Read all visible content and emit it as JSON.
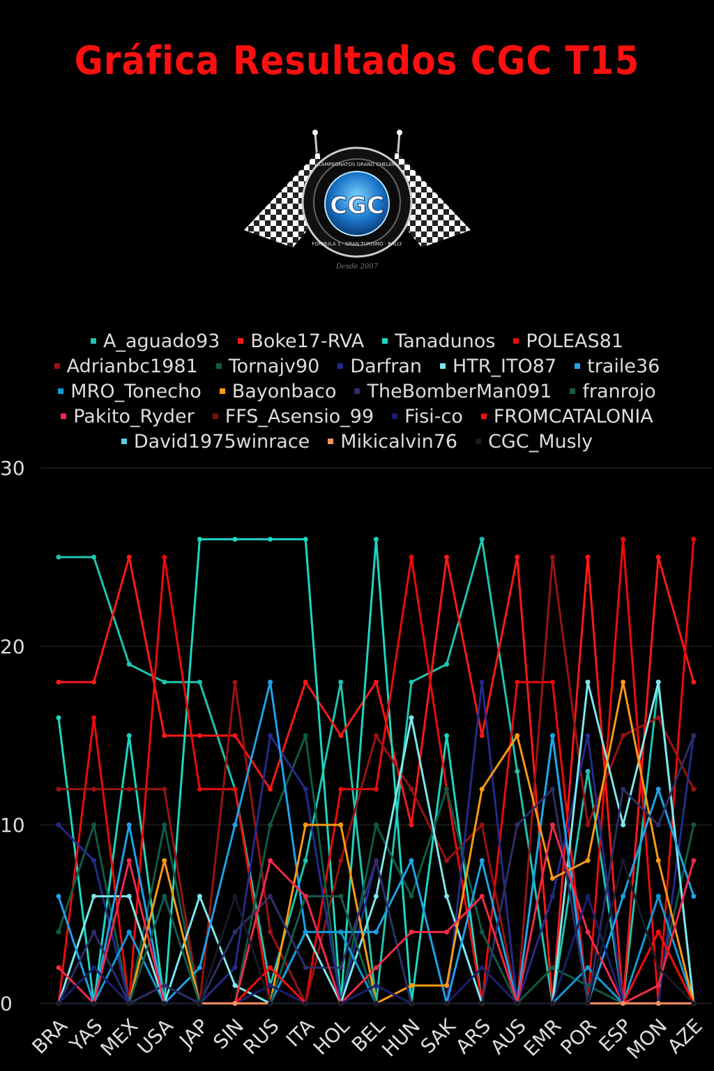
{
  "title": "Gráfica Resultados CGC T15",
  "logo": {
    "text": "CGC",
    "ring_top": "CAMPEONATOS GRAND CHELEM",
    "ring_bottom": "FORMULA 1 · GRAN TURISMO · RALLY",
    "tagline": "Desde 2007"
  },
  "chart_data": {
    "type": "line",
    "title": "Gráfica Resultados CGC T15",
    "xlabel": "",
    "ylabel": "",
    "ylim": [
      0,
      30
    ],
    "yticks": [
      0,
      10,
      20,
      30
    ],
    "grid": true,
    "legend_position": "top",
    "categories": [
      "BRA",
      "YAS",
      "MEX",
      "USA",
      "JAP",
      "SIN",
      "RUS",
      "ITA",
      "HOL",
      "BEL",
      "HUN",
      "SAK",
      "ARS",
      "AUS",
      "EMR",
      "POR",
      "ESP",
      "MON",
      "AZE"
    ],
    "series": [
      {
        "name": "A_aguado93",
        "color": "#20c4b0",
        "values": [
          25,
          25,
          19,
          18,
          18,
          12,
          1,
          8,
          18,
          0,
          18,
          19,
          26,
          13,
          0,
          13,
          0,
          18,
          0
        ]
      },
      {
        "name": "Boke17-RVA",
        "color": "#ff1818",
        "values": [
          18,
          18,
          25,
          15,
          15,
          15,
          12,
          18,
          15,
          18,
          10,
          25,
          15,
          25,
          0,
          25,
          0,
          25,
          18
        ]
      },
      {
        "name": "Tanadunos",
        "color": "#1dd6c2",
        "values": [
          16,
          0,
          15,
          0,
          26,
          26,
          26,
          26,
          0,
          26,
          0,
          15,
          0,
          0,
          15,
          0,
          0,
          0,
          0
        ]
      },
      {
        "name": "POLEAS81",
        "color": "#ee0a0a",
        "values": [
          0,
          16,
          0,
          25,
          12,
          12,
          0,
          0,
          12,
          12,
          25,
          12,
          0,
          18,
          18,
          0,
          26,
          0,
          26
        ]
      },
      {
        "name": "Adrianbc1981",
        "color": "#9a1212",
        "values": [
          12,
          12,
          12,
          12,
          0,
          18,
          4,
          0,
          8,
          15,
          12,
          8,
          10,
          0,
          25,
          10,
          15,
          16,
          12
        ]
      },
      {
        "name": "Tornajv90",
        "color": "#0f5a46",
        "values": [
          4,
          10,
          0,
          10,
          0,
          0,
          10,
          15,
          0,
          10,
          6,
          12,
          4,
          0,
          2,
          1,
          0,
          1,
          10
        ]
      },
      {
        "name": "Darfran",
        "color": "#252a8a",
        "values": [
          10,
          8,
          0,
          0,
          0,
          2,
          15,
          12,
          0,
          8,
          0,
          0,
          18,
          0,
          6,
          15,
          0,
          0,
          15
        ]
      },
      {
        "name": "HTR_ITO87",
        "color": "#7ce8ec",
        "values": [
          0,
          6,
          6,
          0,
          6,
          1,
          0,
          4,
          0,
          6,
          16,
          6,
          0,
          0,
          0,
          18,
          10,
          18,
          0
        ]
      },
      {
        "name": "traile36",
        "color": "#1fa2e8",
        "values": [
          6,
          0,
          10,
          0,
          2,
          10,
          18,
          4,
          4,
          4,
          8,
          0,
          8,
          0,
          15,
          0,
          6,
          12,
          6
        ]
      },
      {
        "name": "MRO_Tonecho",
        "color": "#0e9bd6",
        "values": [
          0,
          0,
          4,
          0,
          0,
          0,
          0,
          4,
          4,
          0,
          0,
          0,
          0,
          0,
          0,
          2,
          0,
          6,
          0
        ]
      },
      {
        "name": "Bayonbaco",
        "color": "#ff9a12",
        "values": [
          0,
          0,
          0,
          8,
          0,
          0,
          0,
          10,
          10,
          0,
          1,
          1,
          12,
          15,
          7,
          8,
          18,
          8,
          0
        ]
      },
      {
        "name": "TheBomberMan091",
        "color": "#2e2e66",
        "values": [
          0,
          4,
          0,
          1,
          0,
          4,
          6,
          2,
          2,
          8,
          0,
          0,
          0,
          10,
          12,
          0,
          12,
          10,
          15
        ]
      },
      {
        "name": "franrojo",
        "color": "#145c4e",
        "values": [
          0,
          0,
          0,
          6,
          0,
          0,
          0,
          6,
          6,
          0,
          0,
          0,
          0,
          0,
          0,
          0,
          0,
          0,
          0
        ]
      },
      {
        "name": "Pakito_Ryder",
        "color": "#f02a4a",
        "values": [
          2,
          0,
          8,
          0,
          0,
          0,
          8,
          6,
          0,
          2,
          4,
          4,
          6,
          0,
          10,
          4,
          0,
          1,
          8
        ]
      },
      {
        "name": "FFS_Asensio_99",
        "color": "#7a0e0e",
        "values": [
          0,
          0,
          0,
          0,
          0,
          0,
          0,
          0,
          0,
          0,
          0,
          0,
          0,
          0,
          0,
          0,
          0,
          0,
          0
        ]
      },
      {
        "name": "Fisi-co",
        "color": "#1a1f70",
        "values": [
          0,
          2,
          0,
          0,
          0,
          0,
          1,
          0,
          0,
          1,
          0,
          0,
          2,
          0,
          0,
          6,
          0,
          0,
          0
        ]
      },
      {
        "name": "FROMCATALONIA",
        "color": "#ff0c0c",
        "values": [
          0,
          0,
          0,
          0,
          0,
          0,
          2,
          0,
          0,
          0,
          0,
          0,
          0,
          0,
          0,
          0,
          0,
          4,
          0
        ]
      },
      {
        "name": "David1975winrace",
        "color": "#5ad0e0",
        "values": [
          0,
          0,
          0,
          0,
          0,
          0,
          0,
          0,
          0,
          0,
          0,
          0,
          0,
          0,
          0,
          0,
          0,
          0,
          0
        ]
      },
      {
        "name": "Mikicalvin76",
        "color": "#ff9060",
        "values": [
          0,
          0,
          0,
          0,
          0,
          0,
          0,
          0,
          0,
          0,
          0,
          0,
          0,
          0,
          0,
          0,
          0,
          0,
          0
        ]
      },
      {
        "name": "CGC_Musly",
        "color": "#161a28",
        "values": [
          0,
          0,
          0,
          0,
          0,
          6,
          0,
          0,
          0,
          0,
          0,
          0,
          0,
          0,
          0,
          0,
          8,
          2,
          0
        ]
      }
    ]
  }
}
